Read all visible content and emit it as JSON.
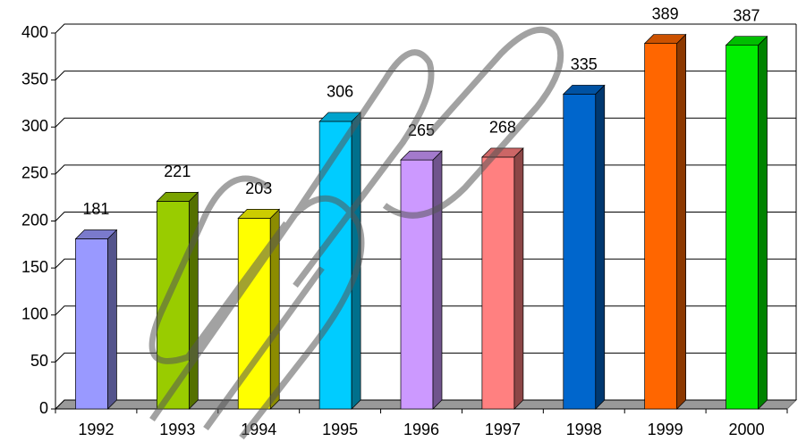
{
  "chart_data": {
    "type": "bar3d",
    "categories": [
      "1992",
      "1993",
      "1994",
      "1995",
      "1996",
      "1997",
      "1998",
      "1999",
      "2000"
    ],
    "values": [
      181,
      221,
      203,
      306,
      265,
      268,
      335,
      389,
      387
    ],
    "colors": [
      "#9999ff",
      "#99cc00",
      "#ffff00",
      "#00ccff",
      "#cc99ff",
      "#ff8080",
      "#0066cc",
      "#ff6600",
      "#00ee00"
    ],
    "ylim": [
      0,
      400
    ],
    "yticks": [
      0,
      50,
      100,
      150,
      200,
      250,
      300,
      350,
      400
    ],
    "grid": true
  }
}
